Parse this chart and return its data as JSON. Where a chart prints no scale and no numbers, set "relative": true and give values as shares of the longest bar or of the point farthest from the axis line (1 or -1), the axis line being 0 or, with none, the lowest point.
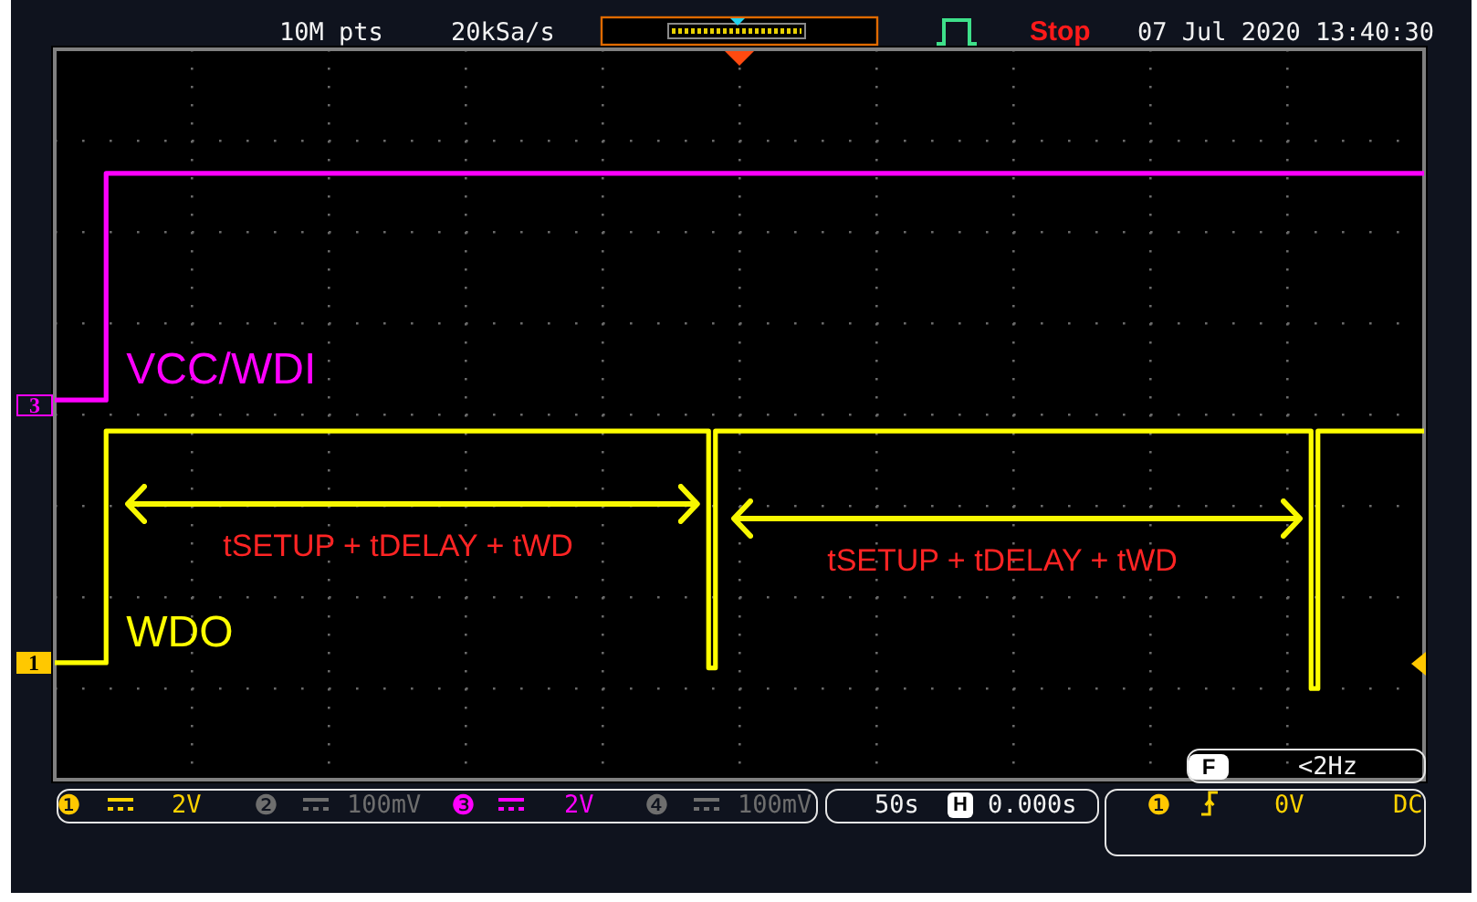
{
  "chart_data": {
    "type": "step",
    "relative": true,
    "grid": true,
    "categories": [
      null,
      null,
      null,
      null,
      null,
      null,
      null,
      null,
      null,
      null,
      null,
      null,
      null,
      null,
      null,
      null,
      null,
      null,
      null,
      null,
      null,
      null,
      null,
      null,
      null,
      null,
      null,
      null,
      null,
      null,
      null,
      null,
      null,
      null,
      null,
      null,
      null,
      null,
      null,
      null,
      null,
      null,
      null,
      null,
      null,
      null,
      null,
      null,
      null,
      null,
      null,
      null,
      null,
      null,
      null,
      null,
      null,
      null,
      null,
      null,
      null,
      null,
      null,
      null,
      null,
      null,
      null,
      null,
      null,
      null,
      null,
      null,
      null,
      null,
      null,
      null,
      null,
      null,
      null,
      null,
      null,
      null,
      null,
      null,
      null,
      null,
      null,
      null,
      null,
      null,
      null,
      null,
      null,
      null,
      null,
      null,
      null,
      null,
      null,
      null,
      null,
      null,
      null,
      null,
      null,
      null,
      null,
      null,
      null,
      null,
      null,
      null,
      null,
      null,
      null,
      null,
      null,
      null,
      null,
      null,
      null,
      null,
      null,
      null,
      null,
      null,
      null,
      null,
      null,
      null,
      null,
      null,
      null,
      null,
      null,
      null,
      null,
      null,
      null,
      null,
      null,
      null,
      null,
      null,
      null,
      null,
      null,
      null,
      null,
      null,
      null,
      null,
      null,
      null,
      null,
      null,
      null,
      null,
      null,
      null,
      null,
      null,
      null,
      null,
      null,
      null,
      null,
      null,
      null,
      null,
      null,
      null,
      null,
      null,
      null,
      null,
      null,
      null,
      null,
      null,
      null,
      null,
      null,
      null,
      null,
      null,
      null,
      null,
      null,
      null,
      null,
      null,
      null,
      null,
      null,
      null,
      null,
      null,
      null,
      null,
      null
    ],
    "series": [
      {
        "name": "VCC/WDI",
        "color": "#ff00ff",
        "values": [
          0.56,
          0.56,
          0.56,
          0.56,
          0.56,
          0.56,
          0.56,
          0.56,
          1,
          1,
          1,
          1,
          1,
          1,
          1,
          1,
          1,
          1,
          1,
          1,
          1,
          1,
          1,
          1,
          1,
          1,
          1,
          1,
          1,
          1,
          1,
          1,
          1,
          1,
          1,
          1,
          1,
          1,
          1,
          1,
          1,
          1,
          1,
          1,
          1,
          1,
          1,
          1,
          1,
          1,
          1,
          1,
          1,
          1,
          1,
          1,
          1,
          1,
          1,
          1,
          1,
          1,
          1,
          1,
          1,
          1,
          1,
          1,
          1,
          1,
          1,
          1,
          1,
          1,
          1,
          1,
          1,
          1,
          1,
          1,
          1,
          1,
          1,
          1,
          1,
          1,
          1,
          1,
          1,
          1,
          1,
          1,
          1,
          1,
          1,
          1,
          1,
          1,
          1,
          1,
          1,
          1,
          1,
          1,
          1,
          1,
          1,
          1,
          1,
          1,
          1,
          1,
          1,
          1,
          1,
          1,
          1,
          1,
          1,
          1,
          1,
          1,
          1,
          1,
          1,
          1,
          1,
          1,
          1,
          1,
          1,
          1,
          1,
          1,
          1,
          1,
          1,
          1,
          1,
          1,
          1,
          1,
          1,
          1,
          1,
          1,
          1,
          1,
          1,
          1,
          1,
          1,
          1,
          1,
          1,
          1,
          1,
          1,
          1,
          1,
          1,
          1,
          1,
          1,
          1,
          1,
          1,
          1,
          1,
          1,
          1,
          1,
          1,
          1,
          1,
          1,
          1,
          1,
          1,
          1,
          1,
          1,
          1,
          1,
          1,
          1,
          1,
          1,
          1,
          1,
          1,
          1,
          1,
          1,
          1,
          1,
          1,
          1,
          1,
          1,
          1
        ]
      },
      {
        "name": "WDO",
        "color": "#ffff00",
        "values": [
          0.05,
          0.05,
          0.05,
          0.05,
          0.05,
          0.05,
          0.05,
          0.05,
          0.5,
          0.5,
          0.5,
          0.5,
          0.5,
          0.5,
          0.5,
          0.5,
          0.5,
          0.5,
          0.5,
          0.5,
          0.5,
          0.5,
          0.5,
          0.5,
          0.5,
          0.5,
          0.5,
          0.5,
          0.5,
          0.5,
          0.5,
          0.5,
          0.5,
          0.5,
          0.5,
          0.5,
          0.5,
          0.5,
          0.5,
          0.5,
          0.5,
          0.5,
          0.5,
          0.5,
          0.5,
          0.5,
          0.5,
          0.5,
          0.5,
          0.5,
          0.5,
          0.5,
          0.5,
          0.5,
          0.5,
          0.5,
          0.5,
          0.5,
          0.5,
          0.5,
          0.5,
          0.5,
          0.5,
          0.5,
          0.5,
          0.5,
          0.5,
          0.5,
          0.5,
          0.5,
          0.5,
          0.5,
          0.5,
          0.5,
          0.5,
          0.5,
          0.5,
          0.5,
          0.5,
          0.5,
          0.5,
          0.5,
          0.5,
          0.5,
          0.5,
          0.5,
          0.5,
          0.5,
          0.5,
          0.5,
          0.5,
          0.5,
          0.5,
          0.5,
          0.5,
          0.5,
          0.04,
          0.5,
          0.5,
          0.5,
          0.5,
          0.5,
          0.5,
          0.5,
          0.5,
          0.5,
          0.5,
          0.5,
          0.5,
          0.5,
          0.5,
          0.5,
          0.5,
          0.5,
          0.5,
          0.5,
          0.5,
          0.5,
          0.5,
          0.5,
          0.5,
          0.5,
          0.5,
          0.5,
          0.5,
          0.5,
          0.5,
          0.5,
          0.5,
          0.5,
          0.5,
          0.5,
          0.5,
          0.5,
          0.5,
          0.5,
          0.5,
          0.5,
          0.5,
          0.5,
          0.5,
          0.5,
          0.5,
          0.5,
          0.5,
          0.5,
          0.5,
          0.5,
          0.5,
          0.5,
          0.5,
          0.5,
          0.5,
          0.5,
          0.5,
          0.5,
          0.5,
          0.5,
          0.5,
          0.5,
          0.5,
          0.5,
          0.5,
          0.5,
          0.5,
          0.5,
          0.5,
          0.5,
          0.5,
          0.5,
          0.5,
          0.5,
          0.5,
          0.5,
          0.5,
          0.5,
          0.5,
          0.5,
          0.5,
          0.5,
          0.5,
          0.5,
          0.5,
          0.5,
          0,
          0.5,
          0.5,
          0.5,
          0.5,
          0.5,
          0.5,
          0.5,
          0.5,
          0.5,
          0.5,
          0.5,
          0.5,
          0.5,
          0.5,
          0.5,
          0.5
        ]
      }
    ],
    "annotations": [
      "10M pts",
      "20kSa/s",
      "Stop",
      "07 Jul 2020 13:40:30",
      "3",
      "tSETUP + tDELAY + tWD",
      "tSETUP + tDELAY + tWD",
      "1",
      "F",
      "<2Hz",
      "❶",
      "2V",
      "❷",
      "100mV",
      "❸",
      "2V",
      "❹",
      "100mV",
      "50s",
      "H",
      "0.000s",
      "❶",
      "0V",
      "DC"
    ]
  }
}
